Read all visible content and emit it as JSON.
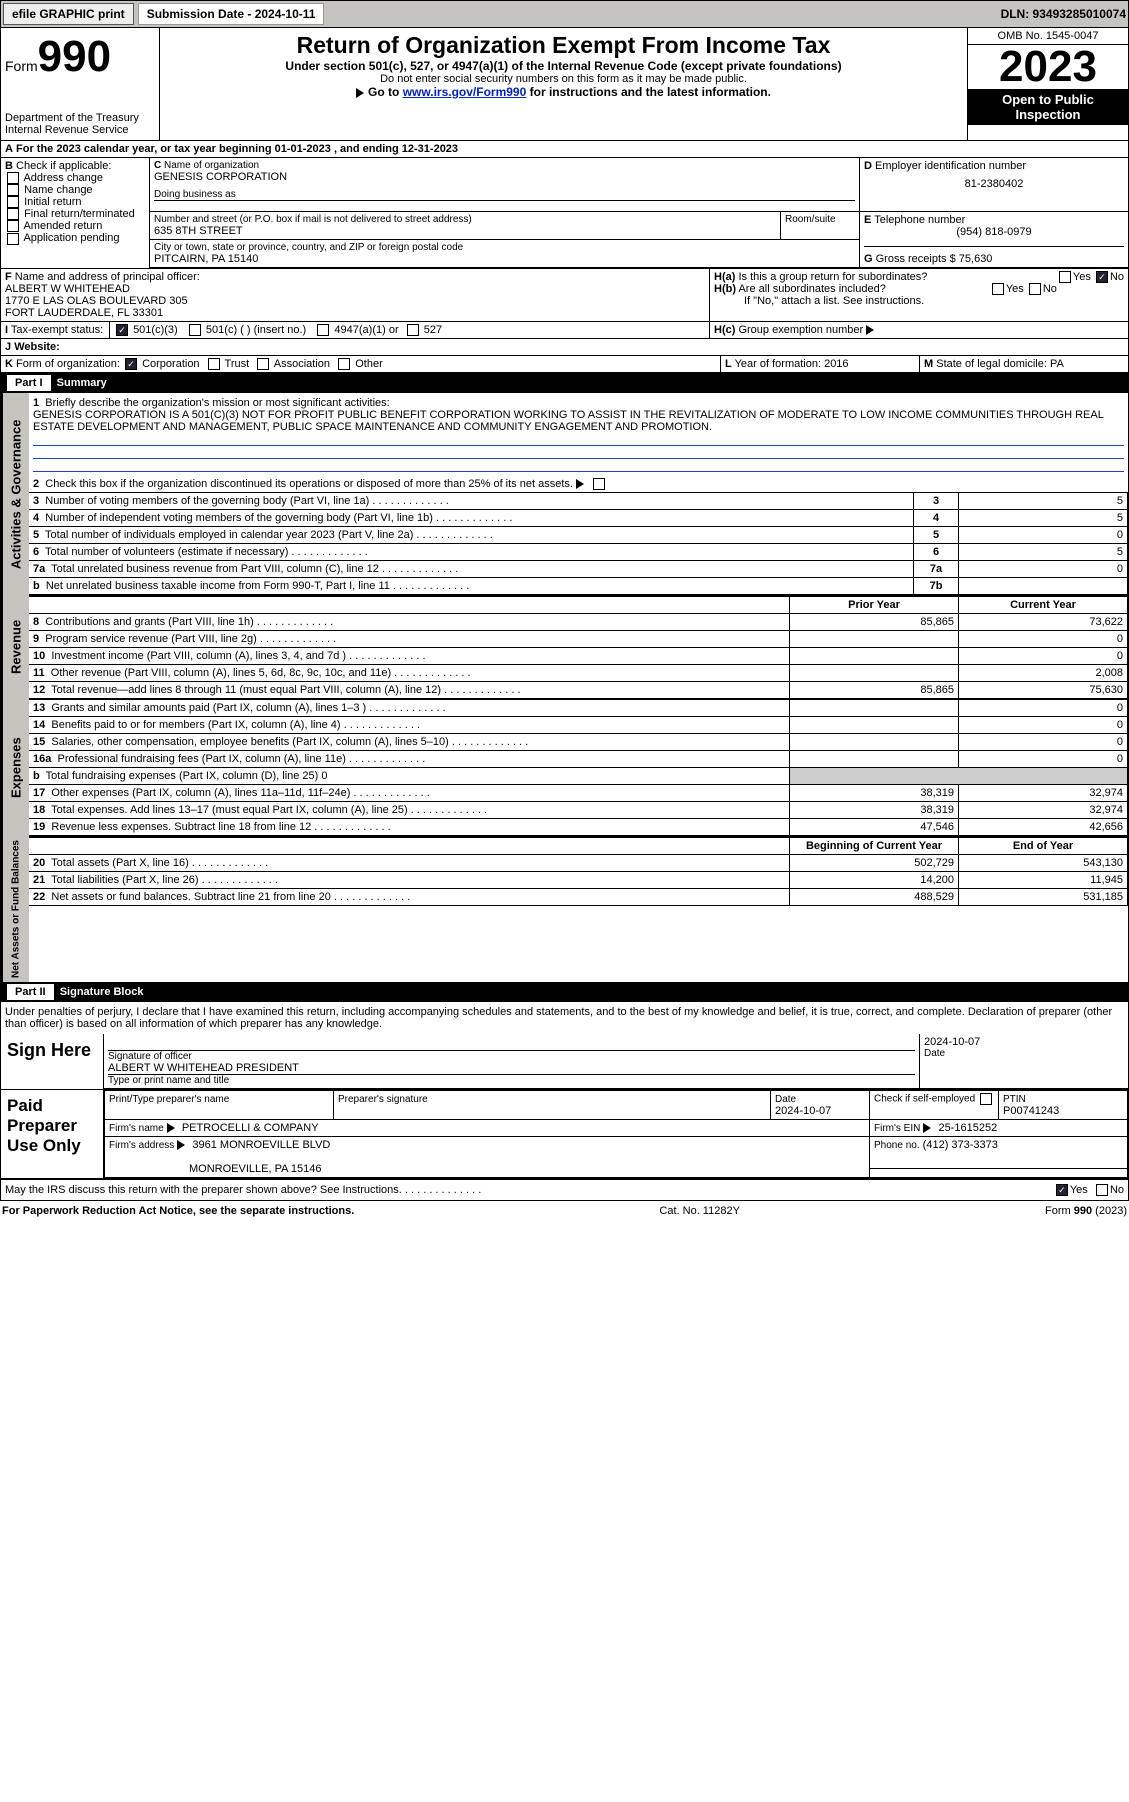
{
  "top": {
    "efile": "efile GRAPHIC print",
    "submission_label": "Submission Date - 2024-10-11",
    "dln_label": "DLN: 93493285010074"
  },
  "header": {
    "form_prefix": "Form",
    "form_no": "990",
    "dept": "Department of the Treasury",
    "irs": "Internal Revenue Service",
    "title": "Return of Organization Exempt From Income Tax",
    "sub1": "Under section 501(c), 527, or 4947(a)(1) of the Internal Revenue Code (except private foundations)",
    "sub2": "Do not enter social security numbers on this form as it may be made public.",
    "sub3_pre": "Go to ",
    "sub3_link": "www.irs.gov/Form990",
    "sub3_post": " for instructions and the latest information.",
    "omb": "OMB No. 1545-0047",
    "year": "2023",
    "open": "Open to Public Inspection"
  },
  "A": {
    "line": "For the 2023 calendar year, or tax year beginning 01-01-2023   , and ending 12-31-2023"
  },
  "B": {
    "label": "Check if applicable:",
    "o1": "Address change",
    "o2": "Name change",
    "o3": "Initial return",
    "o4": "Final return/terminated",
    "o5": "Amended return",
    "o6": "Application pending"
  },
  "C": {
    "name_label": "Name of organization",
    "name": "GENESIS CORPORATION",
    "dba_label": "Doing business as",
    "street_label": "Number and street (or P.O. box if mail is not delivered to street address)",
    "room_label": "Room/suite",
    "street": "635 8TH STREET",
    "city_label": "City or town, state or province, country, and ZIP or foreign postal code",
    "city": "PITCAIRN, PA  15140"
  },
  "D": {
    "label": "Employer identification number",
    "val": "81-2380402"
  },
  "E": {
    "label": "Telephone number",
    "val": "(954) 818-0979"
  },
  "G": {
    "label": "Gross receipts $",
    "val": "75,630"
  },
  "F": {
    "label": "Name and address of principal officer:",
    "l1": "ALBERT W WHITEHEAD",
    "l2": "1770 E LAS OLAS BOULEVARD 305",
    "l3": "FORT LAUDERDALE, FL  33301"
  },
  "H": {
    "a": "Is this a group return for subordinates?",
    "b": "Are all subordinates included?",
    "bnote": "If \"No,\" attach a list. See instructions.",
    "c": "Group exemption number",
    "yes": "Yes",
    "no": "No"
  },
  "I": {
    "label": "Tax-exempt status:",
    "o1": "501(c)(3)",
    "o2": "501(c) (  ) (insert no.)",
    "o3": "4947(a)(1) or",
    "o4": "527"
  },
  "J": {
    "label": "Website:"
  },
  "K": {
    "label": "Form of organization:",
    "o1": "Corporation",
    "o2": "Trust",
    "o3": "Association",
    "o4": "Other"
  },
  "L": {
    "label": "Year of formation: 2016"
  },
  "M": {
    "label": "State of legal domicile: PA"
  },
  "part1": {
    "title": "Part I",
    "label": "Summary",
    "q1": "Briefly describe the organization's mission or most significant activities:",
    "mission": "GENESIS CORPORATION IS A 501(C)(3) NOT FOR PROFIT PUBLIC BENEFIT CORPORATION WORKING TO ASSIST IN THE REVITALIZATION OF MODERATE TO LOW INCOME COMMUNITIES THROUGH REAL ESTATE DEVELOPMENT AND MANAGEMENT, PUBLIC SPACE MAINTENANCE AND COMMUNITY ENGAGEMENT AND PROMOTION.",
    "q2": "Check this box       if the organization discontinued its operations or disposed of more than 25% of its net assets.",
    "rows": [
      {
        "n": "3",
        "t": "Number of voting members of the governing body (Part VI, line 1a)",
        "box": "3",
        "v": "5"
      },
      {
        "n": "4",
        "t": "Number of independent voting members of the governing body (Part VI, line 1b)",
        "box": "4",
        "v": "5"
      },
      {
        "n": "5",
        "t": "Total number of individuals employed in calendar year 2023 (Part V, line 2a)",
        "box": "5",
        "v": "0"
      },
      {
        "n": "6",
        "t": "Total number of volunteers (estimate if necessary)",
        "box": "6",
        "v": "5"
      },
      {
        "n": "7a",
        "t": "Total unrelated business revenue from Part VIII, column (C), line 12",
        "box": "7a",
        "v": "0"
      },
      {
        "n": "b",
        "t": "Net unrelated business taxable income from Form 990-T, Part I, line 11",
        "box": "7b",
        "v": ""
      }
    ],
    "hdr_prior": "Prior Year",
    "hdr_curr": "Current Year",
    "rev": [
      {
        "n": "8",
        "t": "Contributions and grants (Part VIII, line 1h)",
        "p": "85,865",
        "c": "73,622"
      },
      {
        "n": "9",
        "t": "Program service revenue (Part VIII, line 2g)",
        "p": "",
        "c": "0"
      },
      {
        "n": "10",
        "t": "Investment income (Part VIII, column (A), lines 3, 4, and 7d )",
        "p": "",
        "c": "0"
      },
      {
        "n": "11",
        "t": "Other revenue (Part VIII, column (A), lines 5, 6d, 8c, 9c, 10c, and 11e)",
        "p": "",
        "c": "2,008"
      },
      {
        "n": "12",
        "t": "Total revenue—add lines 8 through 11 (must equal Part VIII, column (A), line 12)",
        "p": "85,865",
        "c": "75,630"
      }
    ],
    "exp": [
      {
        "n": "13",
        "t": "Grants and similar amounts paid (Part IX, column (A), lines 1–3 )",
        "p": "",
        "c": "0"
      },
      {
        "n": "14",
        "t": "Benefits paid to or for members (Part IX, column (A), line 4)",
        "p": "",
        "c": "0"
      },
      {
        "n": "15",
        "t": "Salaries, other compensation, employee benefits (Part IX, column (A), lines 5–10)",
        "p": "",
        "c": "0"
      },
      {
        "n": "16a",
        "t": "Professional fundraising fees (Part IX, column (A), line 11e)",
        "p": "",
        "c": "0"
      },
      {
        "n": "b",
        "t": "Total fundraising expenses (Part IX, column (D), line 25) 0",
        "p": null,
        "c": null
      },
      {
        "n": "17",
        "t": "Other expenses (Part IX, column (A), lines 11a–11d, 11f–24e)",
        "p": "38,319",
        "c": "32,974"
      },
      {
        "n": "18",
        "t": "Total expenses. Add lines 13–17 (must equal Part IX, column (A), line 25)",
        "p": "38,319",
        "c": "32,974"
      },
      {
        "n": "19",
        "t": "Revenue less expenses. Subtract line 18 from line 12",
        "p": "47,546",
        "c": "42,656"
      }
    ],
    "hdr_beg": "Beginning of Current Year",
    "hdr_end": "End of Year",
    "net": [
      {
        "n": "20",
        "t": "Total assets (Part X, line 16)",
        "p": "502,729",
        "c": "543,130"
      },
      {
        "n": "21",
        "t": "Total liabilities (Part X, line 26)",
        "p": "14,200",
        "c": "11,945"
      },
      {
        "n": "22",
        "t": "Net assets or fund balances. Subtract line 21 from line 20",
        "p": "488,529",
        "c": "531,185"
      }
    ],
    "tab_gov": "Activities & Governance",
    "tab_rev": "Revenue",
    "tab_exp": "Expenses",
    "tab_net": "Net Assets or Fund Balances"
  },
  "part2": {
    "title": "Part II",
    "label": "Signature Block",
    "perjury": "Under penalties of perjury, I declare that I have examined this return, including accompanying schedules and statements, and to the best of my knowledge and belief, it is true, correct, and complete. Declaration of preparer (other than officer) is based on all information of which preparer has any knowledge.",
    "sign_here": "Sign Here",
    "sig_of": "Signature of officer",
    "sig_name": "ALBERT W WHITEHEAD  PRESIDENT",
    "sig_type": "Type or print name and title",
    "sig_date_lbl": "Date",
    "sig_date": "2024-10-07",
    "paid": "Paid Preparer Use Only",
    "p_name_lbl": "Print/Type preparer's name",
    "p_sig_lbl": "Preparer's signature",
    "p_date_lbl": "Date",
    "p_date": "2024-10-07",
    "p_self": "Check        if self-employed",
    "p_ptin_lbl": "PTIN",
    "p_ptin": "P00741243",
    "firm_lbl": "Firm's name",
    "firm": "PETROCELLI & COMPANY",
    "firm_ein_lbl": "Firm's EIN",
    "firm_ein": "25-1615252",
    "firm_addr_lbl": "Firm's address",
    "firm_addr1": "3961 MONROEVILLE BLVD",
    "firm_addr2": "MONROEVILLE, PA  15146",
    "phone_lbl": "Phone no.",
    "phone": "(412) 373-3373",
    "discuss": "May the IRS discuss this return with the preparer shown above? See Instructions."
  },
  "foot": {
    "pra": "For Paperwork Reduction Act Notice, see the separate instructions.",
    "cat": "Cat. No. 11282Y",
    "form": "Form 990 (2023)"
  }
}
